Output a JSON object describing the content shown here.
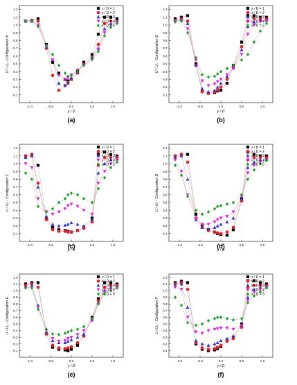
{
  "figure": {
    "series_styles": [
      {
        "name": "x / D = 1",
        "color": "#000000",
        "marker": "square"
      },
      {
        "name": "x / D = 2",
        "color": "#e8202a",
        "marker": "circle"
      },
      {
        "name": "x / D = 3",
        "color": "#2d35c8",
        "marker": "triangle-up"
      },
      {
        "name": "x / D = 4",
        "color": "#e020e0",
        "marker": "triangle-down"
      },
      {
        "name": "x / D = 5",
        "color": "#15a32a",
        "marker": "diamond"
      }
    ],
    "line_color": "#c9a0a0"
  },
  "chart_data": [
    {
      "type": "scatter",
      "panel_label": "(a)",
      "title": "",
      "xlabel": "y / D",
      "ylabel": "U / U₀ - Configuration A",
      "xlim": [
        -1.25,
        1.25
      ],
      "ylim": [
        0.0,
        1.25
      ],
      "xticks": [
        -1.0,
        -0.5,
        0.0,
        0.5,
        1.0
      ],
      "yticks": [
        0.1,
        0.2,
        0.3,
        0.4,
        0.5,
        0.6,
        0.7,
        0.8,
        0.9,
        1.0,
        1.1,
        1.2
      ],
      "x": [
        -1.1,
        -0.95,
        -0.8,
        -0.6,
        -0.45,
        -0.3,
        -0.15,
        -0.08,
        0.0,
        0.15,
        0.3,
        0.5,
        0.65,
        0.8,
        0.95,
        1.1
      ],
      "series": [
        {
          "name": "x / D = 1",
          "values": [
            1.05,
            1.06,
            1.08,
            0.75,
            0.52,
            0.38,
            0.3,
            0.28,
            0.3,
            0.4,
            0.52,
            0.62,
            0.88,
            1.1,
            1.1,
            1.08
          ]
        },
        {
          "name": "x / D = 2",
          "values": [
            1.05,
            1.06,
            1.05,
            0.7,
            0.35,
            0.16,
            0.22,
            0.26,
            0.3,
            0.38,
            0.5,
            0.58,
            0.75,
            1.02,
            1.05,
            1.05
          ]
        },
        {
          "name": "x / D = 3",
          "values": [
            1.05,
            1.05,
            1.0,
            0.72,
            0.55,
            0.25,
            0.22,
            0.25,
            0.32,
            0.4,
            0.5,
            0.58,
            0.7,
            0.95,
            1.02,
            1.05
          ]
        },
        {
          "name": "x / D = 4",
          "values": [
            1.05,
            1.05,
            1.0,
            0.72,
            0.55,
            0.35,
            0.3,
            0.32,
            0.36,
            0.42,
            0.48,
            0.55,
            0.68,
            0.9,
            1.0,
            1.03
          ]
        },
        {
          "name": "x / D = 5",
          "values": [
            1.05,
            1.05,
            0.98,
            0.74,
            0.62,
            0.48,
            0.38,
            0.34,
            0.35,
            0.4,
            0.48,
            0.56,
            0.66,
            0.86,
            0.97,
            1.02
          ]
        }
      ],
      "legend": "top-right",
      "grid": false
    },
    {
      "type": "scatter",
      "panel_label": "(b)",
      "title": "",
      "xlabel": "y / D",
      "ylabel": "U / U₀ - Configuration B",
      "xlim": [
        -1.25,
        1.25
      ],
      "ylim": [
        0.0,
        1.25
      ],
      "xticks": [
        -1.0,
        -0.5,
        0.0,
        0.5,
        1.0
      ],
      "yticks": [
        0.1,
        0.2,
        0.3,
        0.4,
        0.5,
        0.6,
        0.7,
        0.8,
        0.9,
        1.0,
        1.1,
        1.2
      ],
      "x": [
        -1.1,
        -0.95,
        -0.8,
        -0.6,
        -0.45,
        -0.3,
        -0.15,
        -0.08,
        0.0,
        0.15,
        0.3,
        0.5,
        0.65,
        0.8,
        0.95,
        1.1
      ],
      "series": [
        {
          "name": "x / D = 1",
          "values": [
            1.08,
            1.1,
            1.12,
            0.5,
            0.15,
            0.12,
            0.13,
            0.15,
            0.16,
            0.25,
            0.48,
            0.78,
            1.12,
            1.12,
            1.1,
            1.1
          ]
        },
        {
          "name": "x / D = 2",
          "values": [
            1.06,
            1.08,
            1.05,
            0.48,
            0.14,
            0.12,
            0.14,
            0.16,
            0.2,
            0.3,
            0.45,
            0.72,
            1.05,
            1.08,
            1.08,
            1.08
          ]
        },
        {
          "name": "x / D = 3",
          "values": [
            1.06,
            1.07,
            1.02,
            0.48,
            0.18,
            0.14,
            0.16,
            0.2,
            0.25,
            0.34,
            0.45,
            0.68,
            0.98,
            1.04,
            1.06,
            1.06
          ]
        },
        {
          "name": "x / D = 4",
          "values": [
            1.05,
            1.06,
            0.95,
            0.55,
            0.28,
            0.22,
            0.24,
            0.27,
            0.3,
            0.36,
            0.44,
            0.62,
            0.88,
            1.0,
            1.04,
            1.05
          ]
        },
        {
          "name": "x / D = 5",
          "values": [
            1.04,
            1.05,
            0.9,
            0.58,
            0.36,
            0.33,
            0.34,
            0.37,
            0.4,
            0.44,
            0.48,
            0.55,
            0.62,
            0.78,
            0.92,
            1.02
          ]
        }
      ],
      "legend": "top-right",
      "grid": false
    },
    {
      "type": "scatter",
      "panel_label": "(c)",
      "title": "",
      "xlabel": "y / D",
      "ylabel": "U / U₀ - Configuration C",
      "xlim": [
        -1.25,
        1.25
      ],
      "ylim": [
        0.0,
        1.25
      ],
      "xticks": [
        -1.0,
        -0.5,
        0.0,
        0.5,
        1.0
      ],
      "yticks": [
        0.1,
        0.2,
        0.3,
        0.4,
        0.5,
        0.6,
        0.7,
        0.8,
        0.9,
        1.0,
        1.1,
        1.2
      ],
      "x": [
        -1.1,
        -0.95,
        -0.8,
        -0.6,
        -0.45,
        -0.3,
        -0.15,
        -0.08,
        0.0,
        0.15,
        0.3,
        0.5,
        0.65,
        0.8,
        0.95,
        1.1
      ],
      "series": [
        {
          "name": "x / D = 1",
          "values": [
            1.1,
            1.12,
            0.98,
            0.3,
            0.18,
            0.15,
            0.14,
            0.13,
            0.12,
            0.14,
            0.18,
            0.3,
            1.12,
            1.15,
            1.12,
            1.1
          ]
        },
        {
          "name": "x / D = 2",
          "values": [
            1.1,
            1.12,
            0.75,
            0.28,
            0.15,
            0.13,
            0.13,
            0.12,
            0.12,
            0.14,
            0.17,
            0.25,
            0.98,
            1.08,
            1.08,
            1.08
          ]
        },
        {
          "name": "x / D = 3",
          "values": [
            1.08,
            1.1,
            0.7,
            0.32,
            0.22,
            0.2,
            0.21,
            0.22,
            0.24,
            0.22,
            0.2,
            0.28,
            0.88,
            1.0,
            1.05,
            1.06
          ]
        },
        {
          "name": "x / D = 4",
          "values": [
            1.0,
            0.95,
            0.55,
            0.38,
            0.35,
            0.38,
            0.42,
            0.46,
            0.48,
            0.45,
            0.4,
            0.35,
            0.75,
            0.9,
            1.0,
            1.05
          ]
        },
        {
          "name": "x / D = 5",
          "values": [
            0.88,
            0.8,
            0.45,
            0.38,
            0.42,
            0.5,
            0.55,
            0.6,
            0.62,
            0.6,
            0.55,
            0.5,
            0.68,
            0.82,
            0.95,
            1.02
          ]
        }
      ],
      "legend": "top-right",
      "grid": false
    },
    {
      "type": "scatter",
      "panel_label": "(d)",
      "title": "",
      "xlabel": "y / D",
      "ylabel": "U / U₀ - Configuration D",
      "xlim": [
        -1.25,
        1.25
      ],
      "ylim": [
        0.0,
        1.25
      ],
      "xticks": [
        -1.0,
        -0.5,
        0.0,
        0.5,
        1.0
      ],
      "yticks": [
        0.1,
        0.2,
        0.3,
        0.4,
        0.5,
        0.6,
        0.7,
        0.8,
        0.9,
        1.0,
        1.1,
        1.2
      ],
      "x": [
        -1.1,
        -0.95,
        -0.8,
        -0.6,
        -0.45,
        -0.3,
        -0.15,
        -0.08,
        0.0,
        0.15,
        0.3,
        0.5,
        0.65,
        0.8,
        0.95,
        1.1
      ],
      "series": [
        {
          "name": "x / D = 1",
          "values": [
            1.1,
            1.12,
            1.12,
            0.35,
            0.2,
            0.15,
            0.12,
            0.1,
            0.09,
            0.08,
            0.15,
            0.55,
            1.15,
            1.12,
            1.1,
            1.1
          ]
        },
        {
          "name": "x / D = 2",
          "values": [
            1.1,
            1.12,
            1.02,
            0.3,
            0.18,
            0.14,
            0.12,
            0.11,
            0.1,
            0.12,
            0.18,
            0.52,
            1.05,
            1.08,
            1.08,
            1.08
          ]
        },
        {
          "name": "x / D = 3",
          "values": [
            1.08,
            1.1,
            0.8,
            0.28,
            0.18,
            0.16,
            0.18,
            0.2,
            0.22,
            0.25,
            0.3,
            0.55,
            0.95,
            1.02,
            1.05,
            1.06
          ]
        },
        {
          "name": "x / D = 4",
          "values": [
            1.05,
            0.9,
            0.6,
            0.3,
            0.22,
            0.22,
            0.25,
            0.28,
            0.3,
            0.32,
            0.38,
            0.58,
            0.88,
            0.98,
            1.02,
            1.05
          ]
        },
        {
          "name": "x / D = 5",
          "values": [
            0.98,
            0.85,
            0.58,
            0.4,
            0.35,
            0.38,
            0.42,
            0.45,
            0.46,
            0.48,
            0.5,
            0.6,
            0.8,
            0.92,
            1.0,
            1.04
          ]
        }
      ],
      "legend": "top-right",
      "grid": false
    },
    {
      "type": "scatter",
      "panel_label": "(e)",
      "title": "",
      "xlabel": "y / D",
      "ylabel": "U / U₀ - Configuration E",
      "xlim": [
        -1.25,
        1.25
      ],
      "ylim": [
        0.0,
        1.25
      ],
      "xticks": [
        -1.0,
        -0.5,
        0.0,
        0.5,
        1.0
      ],
      "yticks": [
        0.1,
        0.2,
        0.3,
        0.4,
        0.5,
        0.6,
        0.7,
        0.8,
        0.9,
        1.0,
        1.1,
        1.2
      ],
      "x": [
        -1.1,
        -0.95,
        -0.8,
        -0.6,
        -0.45,
        -0.3,
        -0.15,
        -0.08,
        0.0,
        0.15,
        0.3,
        0.5,
        0.65,
        0.8,
        0.95,
        1.1
      ],
      "series": [
        {
          "name": "x / D = 1",
          "values": [
            1.1,
            1.12,
            1.12,
            0.35,
            0.15,
            0.12,
            0.11,
            0.1,
            0.12,
            0.18,
            0.32,
            0.6,
            0.88,
            1.12,
            1.12,
            1.1
          ]
        },
        {
          "name": "x / D = 2",
          "values": [
            1.08,
            1.1,
            1.05,
            0.35,
            0.18,
            0.14,
            0.13,
            0.14,
            0.16,
            0.22,
            0.32,
            0.58,
            0.85,
            1.05,
            1.08,
            1.08
          ]
        },
        {
          "name": "x / D = 3",
          "values": [
            1.06,
            1.08,
            0.78,
            0.38,
            0.25,
            0.22,
            0.22,
            0.24,
            0.26,
            0.3,
            0.35,
            0.56,
            0.82,
            1.0,
            1.05,
            1.06
          ]
        },
        {
          "name": "x / D = 4",
          "values": [
            1.05,
            1.05,
            0.75,
            0.4,
            0.28,
            0.24,
            0.25,
            0.28,
            0.3,
            0.34,
            0.4,
            0.55,
            0.8,
            0.98,
            1.02,
            1.05
          ]
        },
        {
          "name": "x / D = 5",
          "values": [
            1.04,
            1.04,
            0.72,
            0.42,
            0.35,
            0.34,
            0.36,
            0.38,
            0.4,
            0.42,
            0.46,
            0.58,
            0.8,
            0.95,
            1.0,
            1.04
          ]
        }
      ],
      "legend": "top-right",
      "grid": false
    },
    {
      "type": "scatter",
      "panel_label": "(f)",
      "title": "",
      "xlabel": "y / D",
      "ylabel": "U / U₀ - Configuration F",
      "xlim": [
        -1.25,
        1.25
      ],
      "ylim": [
        0.0,
        1.25
      ],
      "xticks": [
        -1.0,
        -0.5,
        0.0,
        0.5,
        1.0
      ],
      "yticks": [
        0.1,
        0.2,
        0.3,
        0.4,
        0.5,
        0.6,
        0.7,
        0.8,
        0.9,
        1.0,
        1.1,
        1.2
      ],
      "x": [
        -1.1,
        -0.95,
        -0.8,
        -0.6,
        -0.45,
        -0.3,
        -0.15,
        -0.08,
        0.0,
        0.15,
        0.3,
        0.5,
        0.65,
        0.8,
        0.95,
        1.1
      ],
      "series": [
        {
          "name": "x / D = 1",
          "values": [
            1.12,
            1.14,
            1.12,
            0.2,
            0.12,
            0.1,
            0.11,
            0.13,
            0.16,
            0.25,
            0.3,
            0.5,
            1.15,
            1.15,
            1.12,
            1.1
          ]
        },
        {
          "name": "x / D = 2",
          "values": [
            1.1,
            1.12,
            1.02,
            0.22,
            0.14,
            0.12,
            0.13,
            0.15,
            0.18,
            0.24,
            0.28,
            0.45,
            1.05,
            1.08,
            1.08,
            1.08
          ]
        },
        {
          "name": "x / D = 3",
          "values": [
            1.08,
            1.1,
            0.75,
            0.25,
            0.2,
            0.18,
            0.2,
            0.22,
            0.25,
            0.28,
            0.32,
            0.48,
            0.9,
            1.02,
            1.05,
            1.06
          ]
        },
        {
          "name": "x / D = 4",
          "values": [
            1.05,
            1.02,
            0.6,
            0.38,
            0.36,
            0.4,
            0.42,
            0.43,
            0.44,
            0.44,
            0.42,
            0.48,
            0.85,
            0.98,
            1.02,
            1.05
          ]
        },
        {
          "name": "x / D = 5",
          "values": [
            0.9,
            0.78,
            0.52,
            0.48,
            0.5,
            0.55,
            0.58,
            0.6,
            0.6,
            0.58,
            0.56,
            0.58,
            0.82,
            0.92,
            0.98,
            1.04
          ]
        }
      ],
      "legend": "top-right",
      "grid": false
    }
  ]
}
